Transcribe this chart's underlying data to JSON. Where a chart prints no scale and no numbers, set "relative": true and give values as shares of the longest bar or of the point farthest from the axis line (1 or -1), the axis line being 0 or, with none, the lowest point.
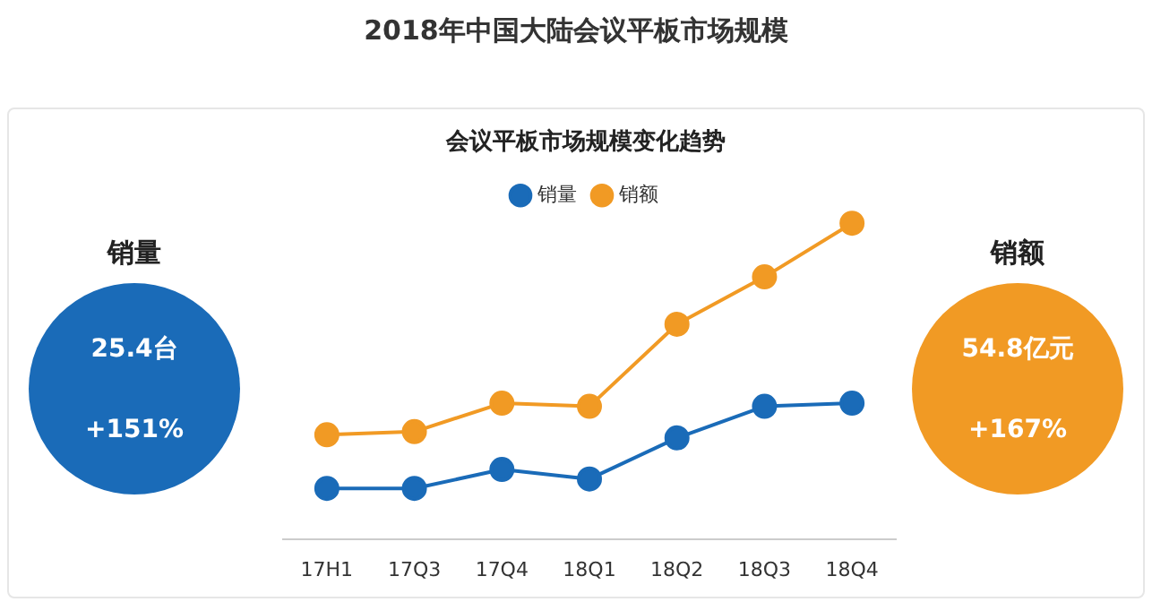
{
  "chart_data": {
    "type": "line",
    "title": "2018年中国大陆会议平板市场规模",
    "subtitle": "会议平板市场规模变化趋势",
    "categories": [
      "17H1",
      "17Q3",
      "17Q4",
      "18Q1",
      "18Q2",
      "18Q3",
      "18Q4"
    ],
    "relative": true,
    "series": [
      {
        "name": "销量",
        "color": "#1a6bb8",
        "values": [
          0.16,
          0.16,
          0.22,
          0.19,
          0.32,
          0.42,
          0.43
        ]
      },
      {
        "name": "销额",
        "color": "#f19a24",
        "values": [
          0.33,
          0.34,
          0.43,
          0.42,
          0.68,
          0.83,
          1.0
        ]
      }
    ],
    "annotations": [
      "销量",
      "25.4台",
      "+151%",
      "销额",
      "54.8亿元",
      "+167%"
    ],
    "legend": "top",
    "marker": "circle",
    "line_style": "solid",
    "grid": false
  }
}
